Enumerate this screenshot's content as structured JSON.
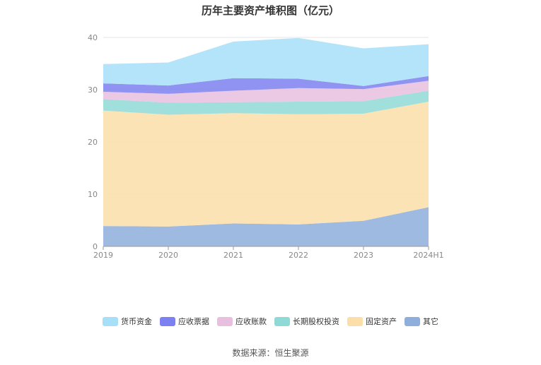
{
  "title": "历年主要资产堆积图（亿元）",
  "source": "数据来源：恒生聚源",
  "chart_data": {
    "type": "area",
    "stacked": true,
    "title": "历年主要资产堆积图（亿元）",
    "categories": [
      "2019",
      "2020",
      "2021",
      "2022",
      "2023",
      "2024H1"
    ],
    "yticks": [
      0,
      10,
      20,
      30,
      40
    ],
    "ylim": [
      0,
      40
    ],
    "grid": true,
    "legend_position": "bottom",
    "series": [
      {
        "name": "其它",
        "color": "#8eaedc",
        "values": [
          3.9,
          3.8,
          4.4,
          4.2,
          4.9,
          7.5
        ]
      },
      {
        "name": "固定资产",
        "color": "#fcdea8",
        "values": [
          22.1,
          21.4,
          21.1,
          21.1,
          20.5,
          20.2
        ]
      },
      {
        "name": "长期股权投资",
        "color": "#8fd9d6",
        "values": [
          2.2,
          2.3,
          2.1,
          2.4,
          2.4,
          2.1
        ]
      },
      {
        "name": "应收账款",
        "color": "#e8bfdf",
        "values": [
          1.4,
          1.7,
          2.2,
          2.6,
          2.3,
          1.9
        ]
      },
      {
        "name": "应收票据",
        "color": "#7c80f0",
        "values": [
          1.6,
          1.6,
          2.4,
          1.8,
          0.6,
          0.9
        ]
      },
      {
        "name": "货币资金",
        "color": "#a7dff8",
        "values": [
          3.7,
          4.4,
          7.0,
          7.8,
          7.2,
          6.1
        ]
      }
    ]
  },
  "legend": [
    {
      "name": "货币资金",
      "color": "#a7dff8"
    },
    {
      "name": "应收票据",
      "color": "#7c80f0"
    },
    {
      "name": "应收账款",
      "color": "#e8bfdf"
    },
    {
      "name": "长期股权投资",
      "color": "#8fd9d6"
    },
    {
      "name": "固定资产",
      "color": "#fcdea8"
    },
    {
      "name": "其它",
      "color": "#8eaedc"
    }
  ]
}
